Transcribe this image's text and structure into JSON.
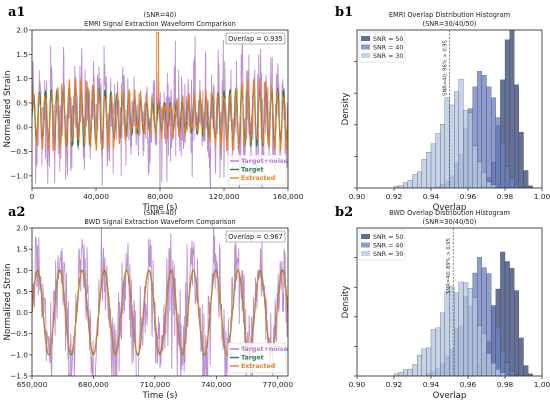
{
  "chart_data": [
    {
      "id": "a1",
      "type": "line",
      "panel_label": "a1",
      "title": "(SNR=40)",
      "subtitle": "EMRI Signal Extraction Waveform Comparison",
      "xlabel": "Time (s)",
      "ylabel": "Normalized Strain",
      "xlim": [
        0,
        160000
      ],
      "ylim": [
        -1.25,
        2.0
      ],
      "x_ticks": [
        0,
        40000,
        80000,
        120000,
        160000
      ],
      "x_tick_labels": [
        "0",
        "40,000",
        "80,000",
        "120,000",
        "160,000"
      ],
      "y_ticks": [
        -1.0,
        -0.5,
        0.0,
        0.5,
        1.0,
        1.5,
        2.0
      ],
      "y_tick_labels": [
        "−1.0",
        "−0.5",
        "0.0",
        "0.5",
        "1.0",
        "1.5",
        "2.0"
      ],
      "annotation": "Overlap = 0.935",
      "legend_position": "bottom-right",
      "series": [
        {
          "name": "Target+noise",
          "color": "#b07cc9"
        },
        {
          "name": "Target",
          "color": "#2e7d4f"
        },
        {
          "name": "Extracted",
          "color": "#f07f23"
        }
      ],
      "cycles": 43,
      "target_amplitude": 0.55,
      "target_offset": 0.22,
      "noise_amplitude": 0.95,
      "spike_x": 78500,
      "spike_y": 1.95
    },
    {
      "id": "b1",
      "type": "histogram",
      "panel_label": "b1",
      "title": "EMRI Overlap Distribution Histogram",
      "subtitle": "(SNR=30/40/50)",
      "xlabel": "Overlap",
      "ylabel": "Density",
      "xlim": [
        0.9,
        1.0
      ],
      "ylim": [
        0,
        100
      ],
      "x_ticks": [
        0.9,
        0.92,
        0.94,
        0.96,
        0.98,
        1.0
      ],
      "x_tick_labels": [
        "0.90",
        "0.92",
        "0.94",
        "0.96",
        "0.98",
        "1.00"
      ],
      "annotation": "SNR=40: 96% > 0.95",
      "threshold": 0.95,
      "legend_position": "top-left",
      "series": [
        {
          "name": "SNR = 50",
          "color": "#3a4a78",
          "mean": 0.984,
          "sd": 0.0045,
          "peak": 95
        },
        {
          "name": "SNR = 40",
          "color": "#6e82bf",
          "mean": 0.971,
          "sd": 0.0075,
          "peak": 78
        },
        {
          "name": "SNR = 30",
          "color": "#b6c6e0",
          "mean": 0.955,
          "sd": 0.0095,
          "peak": 60
        }
      ]
    },
    {
      "id": "a2",
      "type": "line",
      "panel_label": "a2",
      "title": "(SNR=40)",
      "subtitle": "BWD Signal Extraction Waveform Comparison",
      "xlabel": "Time (s)",
      "ylabel": "Normalized Strain",
      "xlim": [
        650000,
        775000
      ],
      "ylim": [
        -1.5,
        2.0
      ],
      "x_ticks": [
        650000,
        680000,
        710000,
        740000,
        770000
      ],
      "x_tick_labels": [
        "650,000",
        "680,000",
        "710,000",
        "740,000",
        "770,000"
      ],
      "y_ticks": [
        -1.5,
        -1.0,
        -0.5,
        0.0,
        0.5,
        1.0,
        1.5,
        2.0
      ],
      "y_tick_labels": [
        "−1.5",
        "−1.0",
        "−0.5",
        "0.0",
        "0.5",
        "1.0",
        "1.5",
        "2.0"
      ],
      "annotation": "Overlap = 0.967",
      "legend_position": "bottom-right",
      "series": [
        {
          "name": "Target+noise",
          "color": "#b07cc9"
        },
        {
          "name": "Target",
          "color": "#2e7d4f"
        },
        {
          "name": "Extracted",
          "color": "#f07f23"
        }
      ],
      "cycles": 11.5,
      "target_amplitude": 1.0,
      "target_offset": 0.0,
      "noise_amplitude": 1.05
    },
    {
      "id": "b2",
      "type": "histogram",
      "panel_label": "b2",
      "title": "BWD Overlap Distribution Histogram",
      "subtitle": "(SNR=30/40/50)",
      "xlabel": "Overlap",
      "ylabel": "Density",
      "xlim": [
        0.9,
        1.0
      ],
      "ylim": [
        0,
        100
      ],
      "x_ticks": [
        0.9,
        0.92,
        0.94,
        0.96,
        0.98,
        1.0
      ],
      "x_tick_labels": [
        "0.90",
        "0.92",
        "0.94",
        "0.96",
        "0.98",
        "1.00"
      ],
      "annotation": "SNR=40: 89% > 0.95",
      "threshold": 0.952,
      "legend_position": "top-left",
      "series": [
        {
          "name": "SNR = 50",
          "color": "#3a4a78",
          "mean": 0.982,
          "sd": 0.0055,
          "peak": 92
        },
        {
          "name": "SNR = 40",
          "color": "#6e82bf",
          "mean": 0.968,
          "sd": 0.0085,
          "peak": 70
        },
        {
          "name": "SNR = 30",
          "color": "#b6c6e0",
          "mean": 0.958,
          "sd": 0.0105,
          "peak": 67
        }
      ]
    }
  ]
}
